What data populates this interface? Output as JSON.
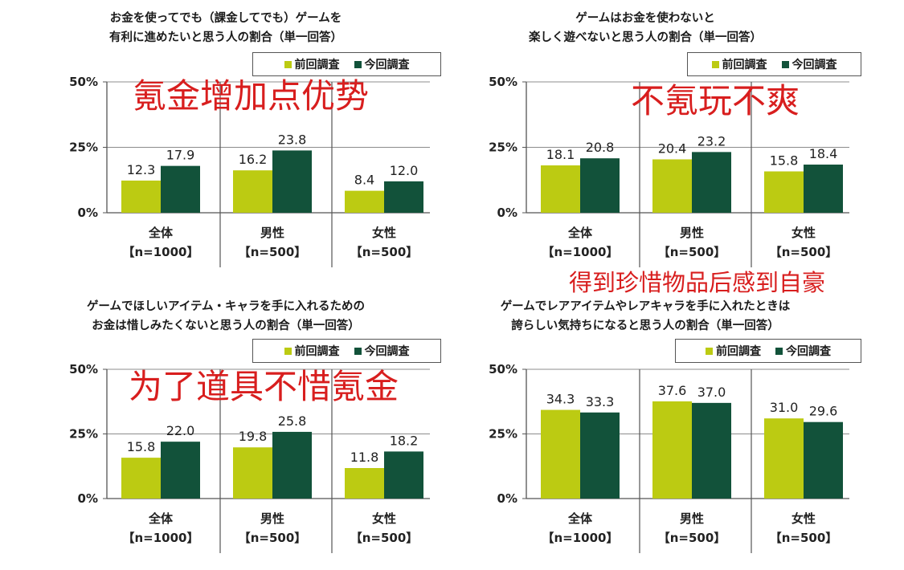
{
  "colors": {
    "previous": "#bccb12",
    "current": "#12523a",
    "annotation": "#d81e1e"
  },
  "legend": {
    "previous": "前回調査",
    "current": "今回調査"
  },
  "categories": [
    "全体",
    "男性",
    "女性"
  ],
  "samples": [
    "【n=1000】",
    "【n=500】",
    "【n=500】"
  ],
  "ytick_labels": [
    "0%",
    "25%",
    "50%"
  ],
  "annotations": {
    "top_left": "氪金增加点优势",
    "top_right": "不氪玩不爽",
    "bottom_left": "为了道具不惜氪金",
    "bottom_right": "得到珍惜物品后感到自豪"
  },
  "chart_data": [
    {
      "type": "bar",
      "title": [
        "お金を使ってでも（課金してでも）ゲームを",
        "有利に進めたいと思う人の割合（単一回答）"
      ],
      "categories": [
        "全体",
        "男性",
        "女性"
      ],
      "series": [
        {
          "name": "前回調査",
          "values": [
            12.3,
            16.2,
            8.4
          ]
        },
        {
          "name": "今回調査",
          "values": [
            17.9,
            23.8,
            12.0
          ]
        }
      ],
      "ylim": [
        0,
        50
      ],
      "yticks": [
        0,
        25,
        50
      ],
      "grid": true,
      "legend": "top-right"
    },
    {
      "type": "bar",
      "title": [
        "ゲームはお金を使わないと",
        "楽しく遊べないと思う人の割合（単一回答）"
      ],
      "categories": [
        "全体",
        "男性",
        "女性"
      ],
      "series": [
        {
          "name": "前回調査",
          "values": [
            18.1,
            20.4,
            15.8
          ]
        },
        {
          "name": "今回調査",
          "values": [
            20.8,
            23.2,
            18.4
          ]
        }
      ],
      "ylim": [
        0,
        50
      ],
      "yticks": [
        0,
        25,
        50
      ],
      "grid": true,
      "legend": "top-right"
    },
    {
      "type": "bar",
      "title": [
        "ゲームでほしいアイテム・キャラを手に入れるための",
        "お金は惜しみたくないと思う人の割合（単一回答）"
      ],
      "categories": [
        "全体",
        "男性",
        "女性"
      ],
      "series": [
        {
          "name": "前回調査",
          "values": [
            15.8,
            19.8,
            11.8
          ]
        },
        {
          "name": "今回調査",
          "values": [
            22.0,
            25.8,
            18.2
          ]
        }
      ],
      "ylim": [
        0,
        50
      ],
      "yticks": [
        0,
        25,
        50
      ],
      "grid": true,
      "legend": "top-right"
    },
    {
      "type": "bar",
      "title": [
        "ゲームでレアアイテムやレアキャラを手に入れたときは",
        "誇らしい気持ちになると思う人の割合（単一回答）"
      ],
      "categories": [
        "全体",
        "男性",
        "女性"
      ],
      "series": [
        {
          "name": "前回調査",
          "values": [
            34.3,
            37.6,
            31.0
          ]
        },
        {
          "name": "今回調査",
          "values": [
            33.3,
            37.0,
            29.6
          ]
        }
      ],
      "ylim": [
        0,
        50
      ],
      "yticks": [
        0,
        25,
        50
      ],
      "grid": true,
      "legend": "top-right"
    }
  ]
}
